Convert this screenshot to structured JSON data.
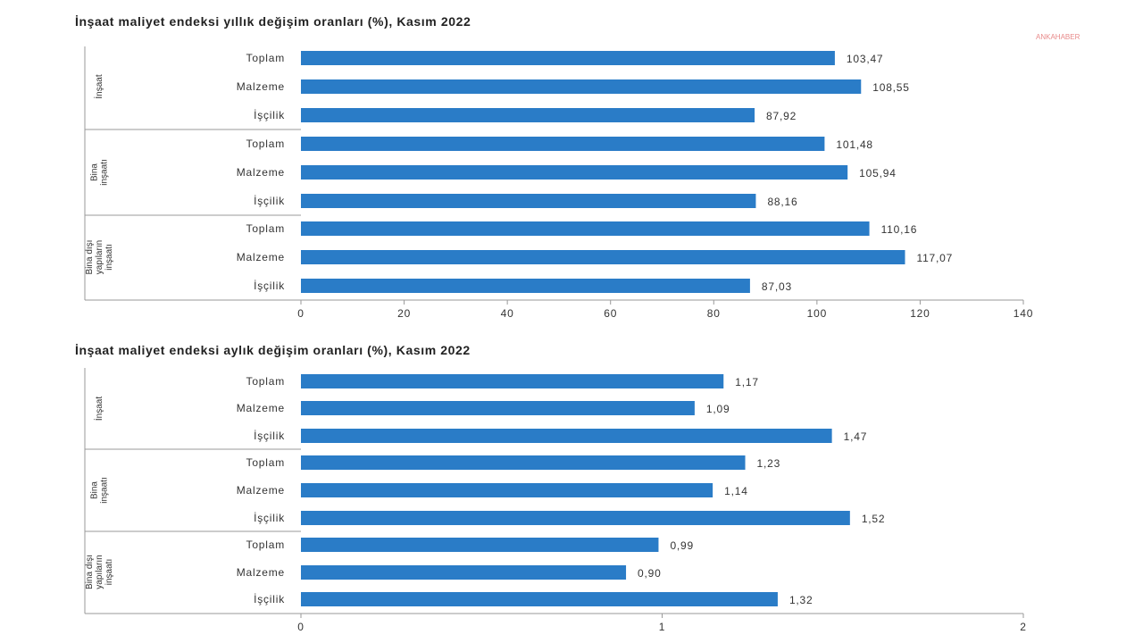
{
  "watermark": "ANKAHABER",
  "chart_data": [
    {
      "type": "bar",
      "orientation": "horizontal",
      "title": "İnşaat maliyet endeksi yıllık değişim oranları (%), Kasım 2022",
      "groups": [
        {
          "label": [
            "İnşaat"
          ],
          "categories": [
            "Toplam",
            "Malzeme",
            "İşçilik"
          ],
          "values": [
            103.47,
            108.55,
            87.92
          ],
          "value_labels": [
            "103,47",
            "108,55",
            "87,92"
          ]
        },
        {
          "label": [
            "Bina",
            "inşaatı"
          ],
          "categories": [
            "Toplam",
            "Malzeme",
            "İşçilik"
          ],
          "values": [
            101.48,
            105.94,
            88.16
          ],
          "value_labels": [
            "101,48",
            "105,94",
            "88,16"
          ]
        },
        {
          "label": [
            "Bina dışı",
            "yapıların",
            "inşaatı"
          ],
          "categories": [
            "Toplam",
            "Malzeme",
            "İşçilik"
          ],
          "values": [
            110.16,
            117.07,
            87.03
          ],
          "value_labels": [
            "110,16",
            "117,07",
            "87,03"
          ]
        }
      ],
      "xlim": [
        0,
        140
      ],
      "xticks": [
        0,
        20,
        40,
        60,
        80,
        100,
        120,
        140
      ],
      "xtick_labels": [
        "0",
        "20",
        "40",
        "60",
        "80",
        "100",
        "120",
        "140"
      ],
      "grid": false,
      "bar_color": "#2a7cc7"
    },
    {
      "type": "bar",
      "orientation": "horizontal",
      "title": "İnşaat maliyet endeksi aylık değişim oranları (%), Kasım 2022",
      "groups": [
        {
          "label": [
            "İnşaat"
          ],
          "categories": [
            "Toplam",
            "Malzeme",
            "İşçilik"
          ],
          "values": [
            1.17,
            1.09,
            1.47
          ],
          "value_labels": [
            "1,17",
            "1,09",
            "1,47"
          ]
        },
        {
          "label": [
            "Bina",
            "inşaatı"
          ],
          "categories": [
            "Toplam",
            "Malzeme",
            "İşçilik"
          ],
          "values": [
            1.23,
            1.14,
            1.52
          ],
          "value_labels": [
            "1,23",
            "1,14",
            "1,52"
          ]
        },
        {
          "label": [
            "Bina dışı",
            "yapıların",
            "inşaatı"
          ],
          "categories": [
            "Toplam",
            "Malzeme",
            "İşçilik"
          ],
          "values": [
            0.99,
            0.9,
            1.32
          ],
          "value_labels": [
            "0,99",
            "0,90",
            "1,32"
          ]
        }
      ],
      "xlim": [
        0,
        2
      ],
      "xticks": [
        0,
        1,
        2
      ],
      "xtick_labels": [
        "0",
        "1",
        "2"
      ],
      "grid": false,
      "bar_color": "#2a7cc7"
    }
  ]
}
